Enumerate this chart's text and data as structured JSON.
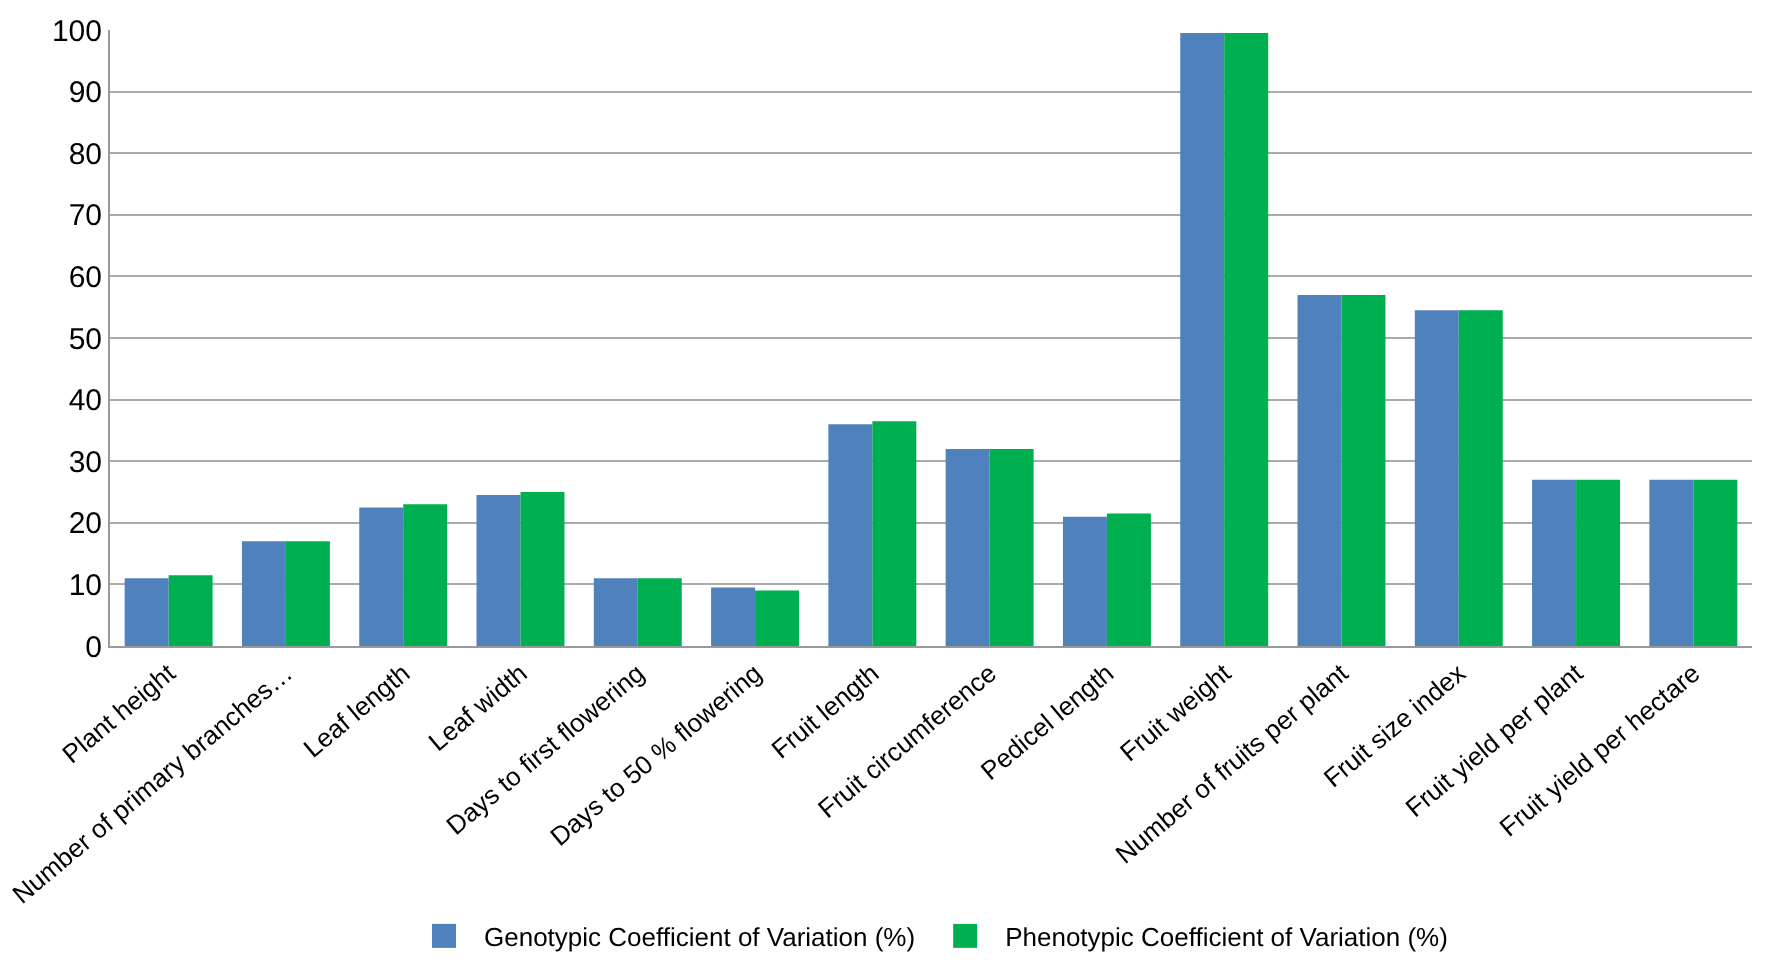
{
  "chart_data": {
    "type": "bar",
    "categories": [
      "Plant height",
      "Number of primary branches…",
      "Leaf length",
      "Leaf width",
      "Days to first flowering",
      "Days to 50 % flowering",
      "Fruit length",
      "Fruit circumference",
      "Pedicel length",
      "Fruit weight",
      "Number of fruits per plant",
      "Fruit size index",
      "Fruit yield per plant",
      "Fruit yield per hectare"
    ],
    "series": [
      {
        "name": "Genotypic Coefficient of Variation (%)",
        "color": "#4f81bd",
        "values": [
          11,
          17,
          22.5,
          24.5,
          11,
          9.5,
          36,
          32,
          21,
          99.5,
          57,
          54.5,
          27,
          27
        ]
      },
      {
        "name": "Phenotypic Coefficient of Variation (%)",
        "color": "#00b050",
        "values": [
          11.5,
          17,
          23,
          25,
          11,
          9,
          36.5,
          32,
          21.5,
          99.5,
          57,
          54.5,
          27,
          27
        ]
      }
    ],
    "ylim": [
      0,
      100
    ],
    "yticks": [
      0,
      10,
      20,
      30,
      40,
      50,
      60,
      70,
      80,
      90,
      100
    ],
    "grid": "y",
    "legend": "bottom"
  }
}
